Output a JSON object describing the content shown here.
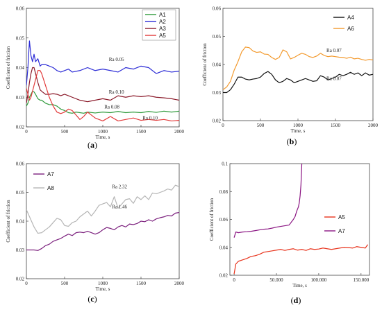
{
  "chart_data": [
    {
      "type": "line",
      "panel_label": "a",
      "xlabel": "Time, s",
      "ylabel": "Coefficient of friction",
      "xlim": [
        0,
        2000
      ],
      "ylim": [
        0.02,
        0.06
      ],
      "xticks": [
        0,
        500,
        1000,
        1500,
        2000
      ],
      "yticks": [
        0.02,
        0.03,
        0.04,
        0.05,
        0.06
      ],
      "grid": false,
      "legend_position": "top-right",
      "series": [
        {
          "name": "A1",
          "color": "#2e9a3a",
          "x": [
            0,
            20,
            40,
            60,
            80,
            100,
            120,
            150,
            180,
            200,
            250,
            300,
            350,
            400,
            450,
            500,
            550,
            600,
            650,
            700,
            750,
            800,
            900,
            1000,
            1100,
            1200,
            1300,
            1400,
            1500,
            1600,
            1700,
            1800,
            1900,
            2000
          ],
          "y": [
            0.027,
            0.028,
            0.03,
            0.031,
            0.032,
            0.0318,
            0.031,
            0.0295,
            0.029,
            0.029,
            0.028,
            0.0275,
            0.0275,
            0.027,
            0.026,
            0.0255,
            0.0248,
            0.0246,
            0.025,
            0.0248,
            0.0246,
            0.025,
            0.0247,
            0.025,
            0.0248,
            0.0252,
            0.0248,
            0.025,
            0.0248,
            0.0252,
            0.0249,
            0.0253,
            0.025,
            0.0253
          ]
        },
        {
          "name": "A2",
          "color": "#2b2bd6",
          "x": [
            0,
            20,
            40,
            60,
            80,
            100,
            120,
            150,
            180,
            200,
            250,
            300,
            350,
            400,
            450,
            500,
            550,
            600,
            700,
            800,
            900,
            1000,
            1100,
            1200,
            1300,
            1400,
            1500,
            1600,
            1700,
            1800,
            1900,
            2000
          ],
          "y": [
            0.034,
            0.04,
            0.049,
            0.044,
            0.042,
            0.0445,
            0.042,
            0.043,
            0.0405,
            0.041,
            0.041,
            0.0405,
            0.04,
            0.039,
            0.0385,
            0.039,
            0.0395,
            0.0385,
            0.039,
            0.04,
            0.039,
            0.0395,
            0.039,
            0.0385,
            0.04,
            0.0395,
            0.0405,
            0.04,
            0.038,
            0.039,
            0.0385,
            0.0388
          ]
        },
        {
          "name": "A3",
          "color": "#8b1a2a",
          "x": [
            0,
            20,
            40,
            60,
            80,
            100,
            120,
            150,
            180,
            200,
            250,
            300,
            350,
            400,
            450,
            500,
            550,
            600,
            700,
            800,
            900,
            1000,
            1100,
            1200,
            1300,
            1400,
            1500,
            1600,
            1700,
            1800,
            1900,
            2000
          ],
          "y": [
            0.028,
            0.031,
            0.035,
            0.038,
            0.04,
            0.04,
            0.038,
            0.035,
            0.0325,
            0.032,
            0.031,
            0.031,
            0.0312,
            0.031,
            0.0305,
            0.031,
            0.0305,
            0.03,
            0.029,
            0.0285,
            0.029,
            0.0295,
            0.029,
            0.0305,
            0.03,
            0.0305,
            0.0302,
            0.0305,
            0.03,
            0.0298,
            0.0295,
            0.029
          ]
        },
        {
          "name": "A5",
          "color": "#e23a3a",
          "x": [
            0,
            20,
            40,
            60,
            80,
            100,
            120,
            150,
            180,
            200,
            250,
            300,
            350,
            400,
            450,
            500,
            550,
            600,
            650,
            700,
            750,
            800,
            900,
            1000,
            1100,
            1200,
            1300,
            1400,
            1500,
            1600,
            1700,
            1800,
            1900,
            2000
          ],
          "y": [
            0.033,
            0.031,
            0.029,
            0.03,
            0.032,
            0.034,
            0.036,
            0.039,
            0.039,
            0.038,
            0.034,
            0.03,
            0.027,
            0.025,
            0.0245,
            0.025,
            0.026,
            0.0255,
            0.024,
            0.0225,
            0.0235,
            0.025,
            0.023,
            0.022,
            0.0235,
            0.022,
            0.0225,
            0.023,
            0.0222,
            0.0225,
            0.0222,
            0.0225,
            0.022,
            0.0222
          ]
        }
      ],
      "annotations": [
        {
          "text": "Ra 0.05",
          "x": 1080,
          "y": 0.0422
        },
        {
          "text": "Ra 0.10",
          "x": 1080,
          "y": 0.0312
        },
        {
          "text": "Ra 0.08",
          "x": 1020,
          "y": 0.0262
        },
        {
          "text": "Ra 0.10",
          "x": 1520,
          "y": 0.0225
        }
      ]
    },
    {
      "type": "line",
      "panel_label": "b",
      "xlabel": "Time, s",
      "ylabel": "Coefficient of friction",
      "xlim": [
        0,
        2000
      ],
      "ylim": [
        0.02,
        0.06
      ],
      "xticks": [
        0,
        500,
        1000,
        1500,
        2000
      ],
      "yticks": [
        0.02,
        0.03,
        0.04,
        0.05,
        0.06
      ],
      "grid": false,
      "legend_position": "top-right",
      "series": [
        {
          "name": "A4",
          "color": "#111111",
          "x": [
            0,
            50,
            100,
            150,
            200,
            250,
            300,
            350,
            400,
            450,
            500,
            550,
            600,
            650,
            700,
            750,
            800,
            850,
            900,
            950,
            1000,
            1050,
            1100,
            1150,
            1200,
            1250,
            1300,
            1350,
            1400,
            1450,
            1500,
            1550,
            1600,
            1650,
            1700,
            1750,
            1800,
            1850,
            1900,
            1950,
            2000
          ],
          "y": [
            0.03,
            0.03,
            0.031,
            0.033,
            0.0355,
            0.0355,
            0.0348,
            0.0345,
            0.0348,
            0.035,
            0.0355,
            0.0368,
            0.0375,
            0.0365,
            0.0345,
            0.0335,
            0.034,
            0.035,
            0.0345,
            0.0335,
            0.034,
            0.0345,
            0.035,
            0.0345,
            0.034,
            0.0342,
            0.036,
            0.0355,
            0.0345,
            0.035,
            0.0355,
            0.0365,
            0.036,
            0.0365,
            0.0372,
            0.0365,
            0.037,
            0.036,
            0.037,
            0.0362,
            0.0365
          ]
        },
        {
          "name": "A6",
          "color": "#f39a2e",
          "x": [
            0,
            50,
            100,
            150,
            200,
            250,
            300,
            350,
            400,
            450,
            500,
            550,
            600,
            650,
            700,
            750,
            800,
            850,
            900,
            950,
            1000,
            1050,
            1100,
            1150,
            1200,
            1250,
            1300,
            1350,
            1400,
            1450,
            1500,
            1550,
            1600,
            1650,
            1700,
            1750,
            1800,
            1850,
            1900,
            1950,
            2000
          ],
          "y": [
            0.031,
            0.032,
            0.034,
            0.038,
            0.041,
            0.0445,
            0.0462,
            0.046,
            0.0448,
            0.0443,
            0.0445,
            0.0437,
            0.0436,
            0.0425,
            0.0418,
            0.0425,
            0.0452,
            0.0445,
            0.042,
            0.0425,
            0.0433,
            0.044,
            0.0436,
            0.0428,
            0.0425,
            0.043,
            0.044,
            0.0432,
            0.0428,
            0.043,
            0.0428,
            0.0426,
            0.0425,
            0.0422,
            0.0426,
            0.042,
            0.0422,
            0.0418,
            0.0415,
            0.0418,
            0.0416
          ]
        }
      ],
      "annotations": [
        {
          "text": "Ra 0.07",
          "x": 1380,
          "y": 0.0445
        },
        {
          "text": "Ra 0.07",
          "x": 1380,
          "y": 0.0345
        }
      ]
    },
    {
      "type": "line",
      "panel_label": "c",
      "xlabel": "Time, s",
      "ylabel": "Coefficient of friction",
      "xlim": [
        0,
        2000
      ],
      "ylim": [
        0.02,
        0.06
      ],
      "xticks": [
        0,
        500,
        1000,
        1500,
        2000
      ],
      "yticks": [
        0.02,
        0.03,
        0.04,
        0.05,
        0.06
      ],
      "grid": false,
      "legend_position": "top-left",
      "series": [
        {
          "name": "A7",
          "color": "#7b1f7d",
          "x": [
            0,
            50,
            100,
            150,
            200,
            250,
            300,
            350,
            400,
            450,
            500,
            550,
            600,
            650,
            700,
            750,
            800,
            850,
            900,
            950,
            1000,
            1050,
            1100,
            1150,
            1200,
            1250,
            1300,
            1350,
            1400,
            1450,
            1500,
            1550,
            1600,
            1650,
            1700,
            1750,
            1800,
            1850,
            1900,
            1950,
            2000
          ],
          "y": [
            0.03,
            0.03,
            0.03,
            0.0298,
            0.0305,
            0.0315,
            0.032,
            0.033,
            0.0335,
            0.034,
            0.0348,
            0.0355,
            0.035,
            0.036,
            0.0362,
            0.036,
            0.0365,
            0.036,
            0.0355,
            0.036,
            0.037,
            0.0378,
            0.0375,
            0.037,
            0.038,
            0.0385,
            0.038,
            0.039,
            0.0388,
            0.0392,
            0.04,
            0.0398,
            0.0405,
            0.04,
            0.0408,
            0.0412,
            0.0415,
            0.042,
            0.0418,
            0.0428,
            0.043
          ]
        },
        {
          "name": "A8",
          "color": "#b5b5b5",
          "x": [
            0,
            50,
            100,
            150,
            200,
            250,
            300,
            350,
            400,
            450,
            500,
            550,
            600,
            650,
            700,
            750,
            800,
            850,
            900,
            950,
            1000,
            1050,
            1100,
            1150,
            1200,
            1250,
            1300,
            1350,
            1400,
            1450,
            1500,
            1550,
            1600,
            1650,
            1700,
            1750,
            1800,
            1850,
            1900,
            1950,
            2000
          ],
          "y": [
            0.044,
            0.041,
            0.038,
            0.0358,
            0.036,
            0.037,
            0.038,
            0.0395,
            0.041,
            0.0405,
            0.0385,
            0.0382,
            0.0395,
            0.04,
            0.0415,
            0.0425,
            0.0435,
            0.0418,
            0.0435,
            0.0455,
            0.046,
            0.0465,
            0.045,
            0.0485,
            0.0445,
            0.046,
            0.0475,
            0.0478,
            0.0462,
            0.0485,
            0.0475,
            0.0488,
            0.0475,
            0.0498,
            0.0495,
            0.05,
            0.0505,
            0.0512,
            0.0508,
            0.0525,
            0.052
          ]
        }
      ],
      "annotations": [
        {
          "text": "Ra 2.32",
          "x": 1120,
          "y": 0.0515
        },
        {
          "text": "Ra 1.46",
          "x": 1120,
          "y": 0.0445
        }
      ]
    },
    {
      "type": "line",
      "panel_label": "d",
      "xlabel": "Time, s",
      "ylabel": "Coefficient of friction",
      "xlim": [
        -5000,
        160000
      ],
      "ylim": [
        0.02,
        0.1
      ],
      "xticks": [
        0,
        50000,
        100000,
        150000
      ],
      "xtick_labels": [
        "0",
        "50.000",
        "100.000",
        "150.000"
      ],
      "yticks": [
        0.02,
        0.04,
        0.06,
        0.08,
        0.1
      ],
      "grid": false,
      "legend_position": "right",
      "series": [
        {
          "name": "A5",
          "color": "#e8331c",
          "x": [
            0,
            2000,
            5000,
            10000,
            15000,
            20000,
            25000,
            30000,
            35000,
            40000,
            45000,
            50000,
            55000,
            60000,
            65000,
            70000,
            75000,
            80000,
            85000,
            90000,
            95000,
            100000,
            105000,
            110000,
            115000,
            120000,
            125000,
            130000,
            135000,
            140000,
            145000,
            150000,
            155000,
            158000
          ],
          "y": [
            0.021,
            0.028,
            0.03,
            0.031,
            0.032,
            0.0335,
            0.034,
            0.035,
            0.0365,
            0.037,
            0.0375,
            0.038,
            0.0385,
            0.0378,
            0.0385,
            0.039,
            0.038,
            0.0385,
            0.0378,
            0.039,
            0.0385,
            0.0388,
            0.0395,
            0.039,
            0.0385,
            0.039,
            0.0395,
            0.04,
            0.0398,
            0.0395,
            0.0405,
            0.04,
            0.0395,
            0.042
          ]
        },
        {
          "name": "A7",
          "color": "#8a1482",
          "x": [
            0,
            2000,
            5000,
            10000,
            15000,
            20000,
            25000,
            30000,
            35000,
            40000,
            45000,
            50000,
            55000,
            60000,
            65000,
            70000,
            72000,
            74000,
            76000,
            77000,
            78000,
            79000,
            80000
          ],
          "y": [
            0.047,
            0.051,
            0.0505,
            0.051,
            0.0512,
            0.0515,
            0.052,
            0.0525,
            0.053,
            0.0532,
            0.0538,
            0.0545,
            0.055,
            0.0555,
            0.056,
            0.06,
            0.062,
            0.066,
            0.069,
            0.072,
            0.077,
            0.085,
            0.1
          ]
        }
      ],
      "annotations": []
    }
  ]
}
